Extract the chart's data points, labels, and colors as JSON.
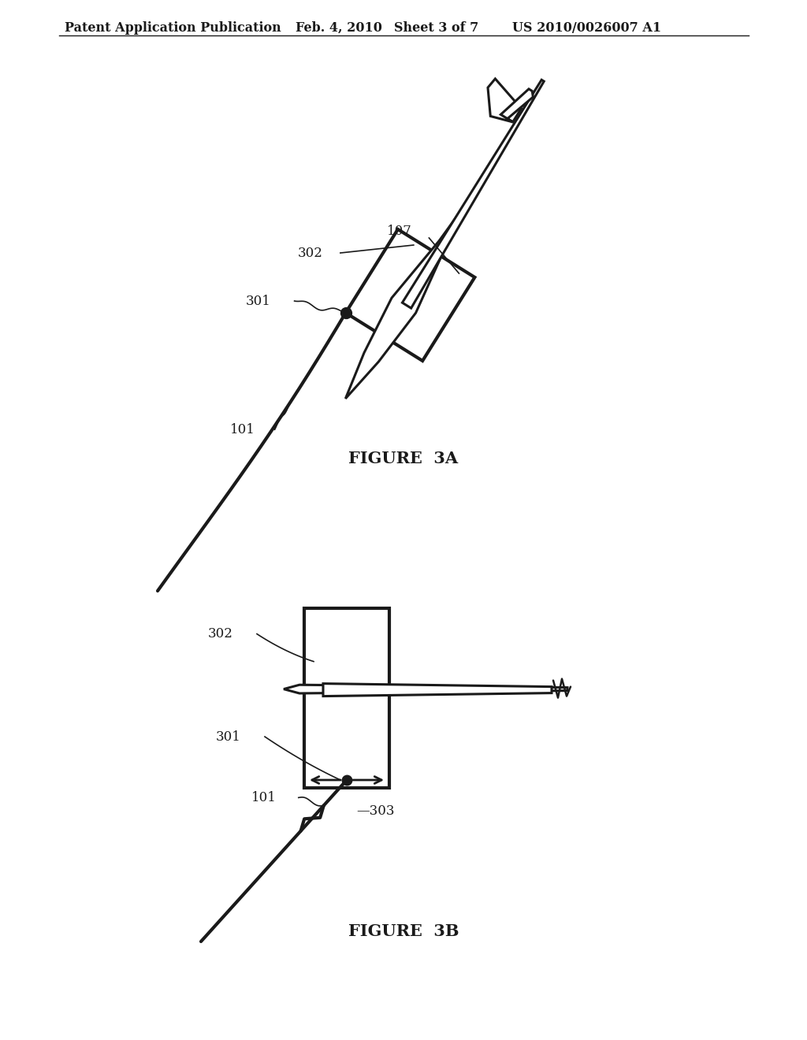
{
  "bg_color": "#ffffff",
  "line_color": "#1a1a1a",
  "header_left": "Patent Application Publication",
  "header_mid1": "Feb. 4, 2010",
  "header_mid2": "Sheet 3 of 7",
  "header_right": "US 2010/0026007 A1",
  "fig3a_caption": "FIGURE  3A",
  "fig3b_caption": "FIGURE  3B"
}
